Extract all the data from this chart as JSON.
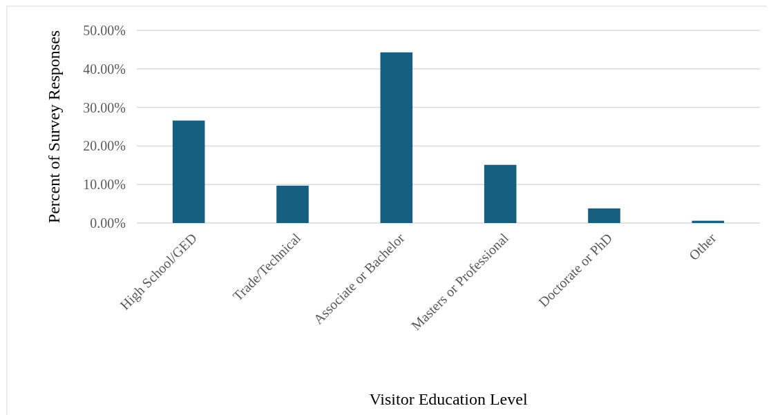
{
  "chart_data": {
    "type": "bar",
    "xlabel": "Visitor Education Level",
    "ylabel": "Percent of Survey Responses",
    "categories": [
      "High School/GED",
      "Trade/Technical",
      "Associate or Bachelor",
      "Masters or Professional",
      "Doctorate or PhD",
      "Other"
    ],
    "values": [
      26.6,
      9.7,
      44.3,
      15.1,
      3.8,
      0.6
    ],
    "color": "#165f80",
    "ylim": [
      0,
      50
    ],
    "yticks": [
      {
        "value": 0,
        "label": "0.00%"
      },
      {
        "value": 10,
        "label": "10.00%"
      },
      {
        "value": 20,
        "label": "20.00%"
      },
      {
        "value": 30,
        "label": "30.00%"
      },
      {
        "value": 40,
        "label": "40.00%"
      },
      {
        "value": 50,
        "label": "50.00%"
      }
    ],
    "grid": "y"
  }
}
